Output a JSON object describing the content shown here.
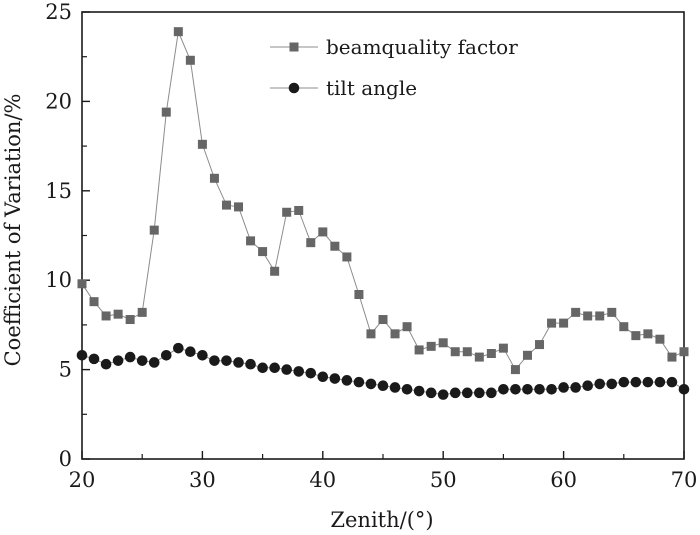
{
  "chart_data": {
    "type": "line",
    "xlabel": "Zenith/(°)",
    "ylabel": "Coefficient of Variation/%",
    "xlim": [
      20,
      70
    ],
    "ylim": [
      0,
      25
    ],
    "xticks": [
      20,
      30,
      40,
      50,
      60,
      70
    ],
    "yticks": [
      0,
      5,
      10,
      15,
      20,
      25
    ],
    "grid": false,
    "legend_position": "top-right",
    "x": [
      20,
      21,
      22,
      23,
      24,
      25,
      26,
      27,
      28,
      29,
      30,
      31,
      32,
      33,
      34,
      35,
      36,
      37,
      38,
      39,
      40,
      41,
      42,
      43,
      44,
      45,
      46,
      47,
      48,
      49,
      50,
      51,
      52,
      53,
      54,
      55,
      56,
      57,
      58,
      59,
      60,
      61,
      62,
      63,
      64,
      65,
      66,
      67,
      68,
      69,
      70
    ],
    "series": [
      {
        "name": "beamquality factor",
        "marker": "square",
        "color": "#666666",
        "values": [
          9.8,
          8.8,
          8.0,
          8.1,
          7.8,
          8.2,
          12.8,
          19.4,
          23.9,
          22.3,
          17.6,
          15.7,
          14.2,
          14.1,
          12.2,
          11.6,
          10.5,
          13.8,
          13.9,
          12.1,
          12.7,
          11.9,
          11.3,
          9.2,
          7.0,
          7.8,
          7.0,
          7.4,
          6.1,
          6.3,
          6.5,
          6.0,
          6.0,
          5.7,
          5.9,
          6.2,
          5.0,
          5.8,
          6.4,
          7.6,
          7.6,
          8.2,
          8.0,
          8.0,
          8.2,
          7.4,
          6.9,
          7.0,
          6.7,
          5.7,
          6.0
        ]
      },
      {
        "name": "tilt angle",
        "marker": "circle",
        "color": "#1a1a1a",
        "values": [
          5.8,
          5.6,
          5.3,
          5.5,
          5.7,
          5.5,
          5.4,
          5.8,
          6.2,
          6.0,
          5.8,
          5.5,
          5.5,
          5.4,
          5.3,
          5.1,
          5.1,
          5.0,
          4.9,
          4.8,
          4.6,
          4.5,
          4.4,
          4.3,
          4.2,
          4.1,
          4.0,
          3.9,
          3.8,
          3.7,
          3.6,
          3.7,
          3.7,
          3.7,
          3.7,
          3.9,
          3.9,
          3.9,
          3.9,
          3.9,
          4.0,
          4.0,
          4.1,
          4.2,
          4.2,
          4.3,
          4.3,
          4.3,
          4.3,
          4.3,
          3.9
        ]
      }
    ]
  }
}
